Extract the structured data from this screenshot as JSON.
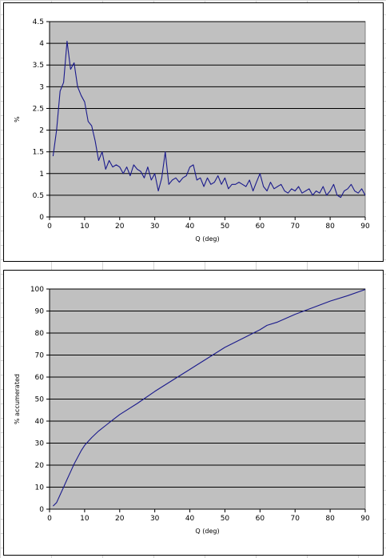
{
  "chart_data": [
    {
      "type": "line",
      "title": "",
      "xlabel": "Q (deg)",
      "ylabel": "%",
      "xlim": [
        0,
        90
      ],
      "ylim": [
        0,
        4.5
      ],
      "xticks": [
        0,
        10,
        20,
        30,
        40,
        50,
        60,
        70,
        80,
        90
      ],
      "yticks": [
        0,
        0.5,
        1,
        1.5,
        2,
        2.5,
        3,
        3.5,
        4,
        4.5
      ],
      "ytick_labels": [
        "0",
        "0.5",
        "1",
        "1.5",
        "2",
        "2.5",
        "3",
        "3.5",
        "4",
        "4.5"
      ],
      "grid": true,
      "plot_background": "#c0c0c0",
      "line_color": "#1a1a8c",
      "series": [
        {
          "x": [
            1,
            2,
            3,
            4,
            5,
            6,
            7,
            8,
            9,
            10,
            11,
            12,
            13,
            14,
            15,
            16,
            17,
            18,
            19,
            20,
            21,
            22,
            23,
            24,
            25,
            26,
            27,
            28,
            29,
            30,
            31,
            32,
            33,
            34,
            35,
            36,
            37,
            38,
            39,
            40,
            41,
            42,
            43,
            44,
            45,
            46,
            47,
            48,
            49,
            50,
            51,
            52,
            53,
            54,
            55,
            56,
            57,
            58,
            59,
            60,
            61,
            62,
            63,
            64,
            65,
            66,
            67,
            68,
            69,
            70,
            71,
            72,
            73,
            74,
            75,
            76,
            77,
            78,
            79,
            80,
            81,
            82,
            83,
            84,
            85,
            86,
            87,
            88,
            89,
            90
          ],
          "y": [
            1.4,
            2.0,
            2.9,
            3.1,
            4.05,
            3.4,
            3.55,
            3.0,
            2.8,
            2.65,
            2.2,
            2.1,
            1.75,
            1.3,
            1.5,
            1.1,
            1.3,
            1.15,
            1.2,
            1.15,
            1.0,
            1.15,
            0.95,
            1.2,
            1.1,
            1.05,
            0.9,
            1.15,
            0.85,
            1.0,
            0.6,
            0.9,
            1.5,
            0.75,
            0.85,
            0.9,
            0.8,
            0.9,
            0.95,
            1.15,
            1.2,
            0.85,
            0.9,
            0.7,
            0.9,
            0.75,
            0.8,
            0.95,
            0.75,
            0.9,
            0.65,
            0.75,
            0.75,
            0.8,
            0.75,
            0.7,
            0.85,
            0.6,
            0.8,
            1.0,
            0.7,
            0.6,
            0.8,
            0.65,
            0.7,
            0.75,
            0.6,
            0.55,
            0.65,
            0.6,
            0.7,
            0.55,
            0.6,
            0.65,
            0.5,
            0.6,
            0.55,
            0.7,
            0.5,
            0.6,
            0.75,
            0.5,
            0.45,
            0.6,
            0.65,
            0.75,
            0.6,
            0.55,
            0.65,
            0.5
          ]
        }
      ]
    },
    {
      "type": "line",
      "title": "",
      "xlabel": "Q (deg)",
      "ylabel": "% accumerated",
      "xlim": [
        0,
        90
      ],
      "ylim": [
        0,
        100
      ],
      "xticks": [
        0,
        10,
        20,
        30,
        40,
        50,
        60,
        70,
        80,
        90
      ],
      "yticks": [
        0,
        10,
        20,
        30,
        40,
        50,
        60,
        70,
        80,
        90,
        100
      ],
      "ytick_labels": [
        "0",
        "10",
        "20",
        "30",
        "40",
        "50",
        "60",
        "70",
        "80",
        "90",
        "100"
      ],
      "grid": true,
      "plot_background": "#c0c0c0",
      "line_color": "#1a1a8c",
      "series": [
        {
          "x": [
            1,
            2,
            3,
            4,
            5,
            6,
            7,
            8,
            9,
            10,
            12,
            14,
            16,
            18,
            20,
            25,
            30,
            35,
            40,
            42,
            45,
            50,
            55,
            60,
            62,
            65,
            70,
            75,
            80,
            85,
            90
          ],
          "y": [
            1.4,
            3.0,
            6.5,
            10.0,
            13.5,
            17.0,
            20.5,
            23.5,
            26.5,
            29.0,
            32.5,
            35.5,
            38.0,
            40.5,
            43.0,
            48.0,
            53.5,
            58.5,
            63.5,
            65.5,
            68.5,
            73.5,
            77.5,
            81.5,
            83.5,
            85.0,
            88.5,
            91.5,
            94.5,
            97.0,
            99.8
          ]
        }
      ]
    }
  ]
}
